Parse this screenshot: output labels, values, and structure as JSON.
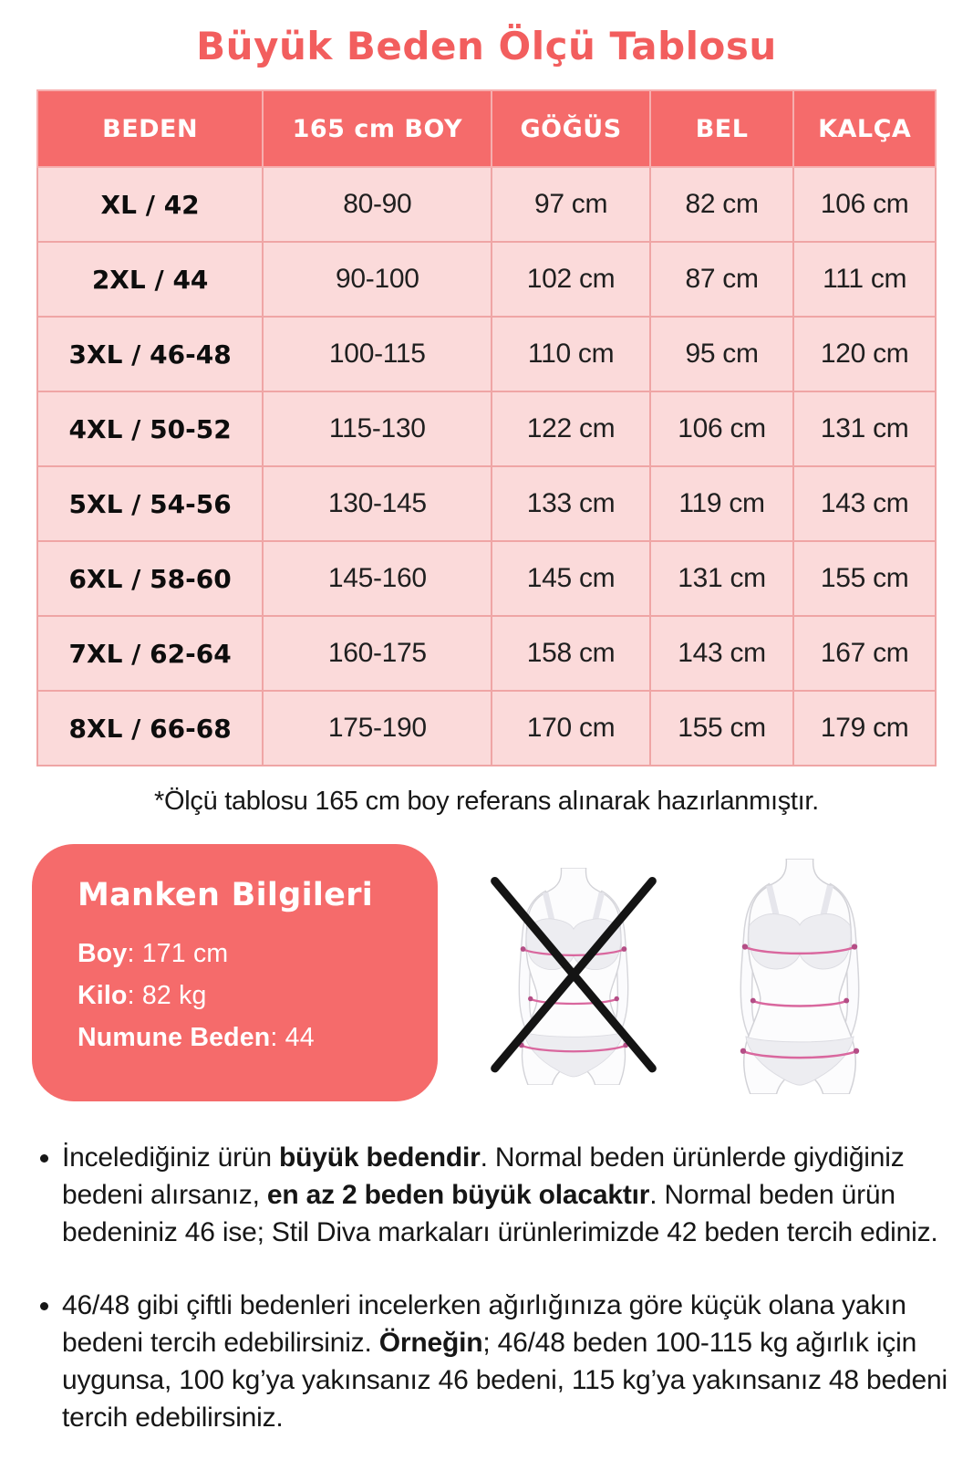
{
  "page": {
    "title": "Büyük Beden Ölçü Tablosu",
    "footnote": "*Ölçü tablosu 165 cm boy referans alınarak hazırlanmıştır."
  },
  "colors": {
    "accent_coral": "#f56b6b",
    "title_red": "#f25e5e",
    "cell_pink": "#fbdada",
    "cell_border_pink": "#efa5a5",
    "measure_line_pink": "#d9679e"
  },
  "size_table": {
    "columns": [
      "BEDEN",
      "165 cm BOY",
      "GÖĞÜS",
      "BEL",
      "KALÇA"
    ],
    "rows": [
      [
        "XL / 42",
        "80-90",
        "97 cm",
        "82 cm",
        "106 cm"
      ],
      [
        "2XL / 44",
        "90-100",
        "102 cm",
        "87 cm",
        "111 cm"
      ],
      [
        "3XL / 46-48",
        "100-115",
        "110 cm",
        "95 cm",
        "120 cm"
      ],
      [
        "4XL / 50-52",
        "115-130",
        "122 cm",
        "106 cm",
        "131 cm"
      ],
      [
        "5XL / 54-56",
        "130-145",
        "133 cm",
        "119 cm",
        "143 cm"
      ],
      [
        "6XL / 58-60",
        "145-160",
        "145 cm",
        "131 cm",
        "155 cm"
      ],
      [
        "7XL / 62-64",
        "160-175",
        "158 cm",
        "143 cm",
        "167 cm"
      ],
      [
        "8XL / 66-68",
        "175-190",
        "170 cm",
        "155 cm",
        "179 cm"
      ]
    ]
  },
  "model_info": {
    "title": "Manken Bilgileri",
    "lines": [
      {
        "label": "Boy",
        "value": ": 171 cm"
      },
      {
        "label": "Kilo",
        "value": ": 82 kg"
      },
      {
        "label": "Numune Beden",
        "value": ": 44"
      }
    ]
  },
  "bullets": [
    [
      {
        "text": "İncelediğiniz ürün ",
        "bold": false
      },
      {
        "text": "büyük bedendir",
        "bold": true
      },
      {
        "text": ". Normal beden ürünlerde giydiğiniz bedeni alırsanız, ",
        "bold": false
      },
      {
        "text": "en az 2 beden büyük olacaktır",
        "bold": true
      },
      {
        "text": ". Normal beden ürün bedeniniz 46 ise; Stil Diva markaları ürünlerimizde 42 beden tercih ediniz.",
        "bold": false
      }
    ],
    [
      {
        "text": "46/48 gibi çiftli bedenleri incelerken ağırlığınıza göre küçük olana yakın bedeni tercih edebilirsiniz. ",
        "bold": false
      },
      {
        "text": "Örneğin",
        "bold": true
      },
      {
        "text": "; 46/48 beden 100-115 kg ağırlık için uygunsa, 100 kg’ya yakınsanız 46 bedeni, 115 kg’ya yakınsanız 48 bedeni tercih edebilirsiniz.",
        "bold": false
      }
    ]
  ]
}
